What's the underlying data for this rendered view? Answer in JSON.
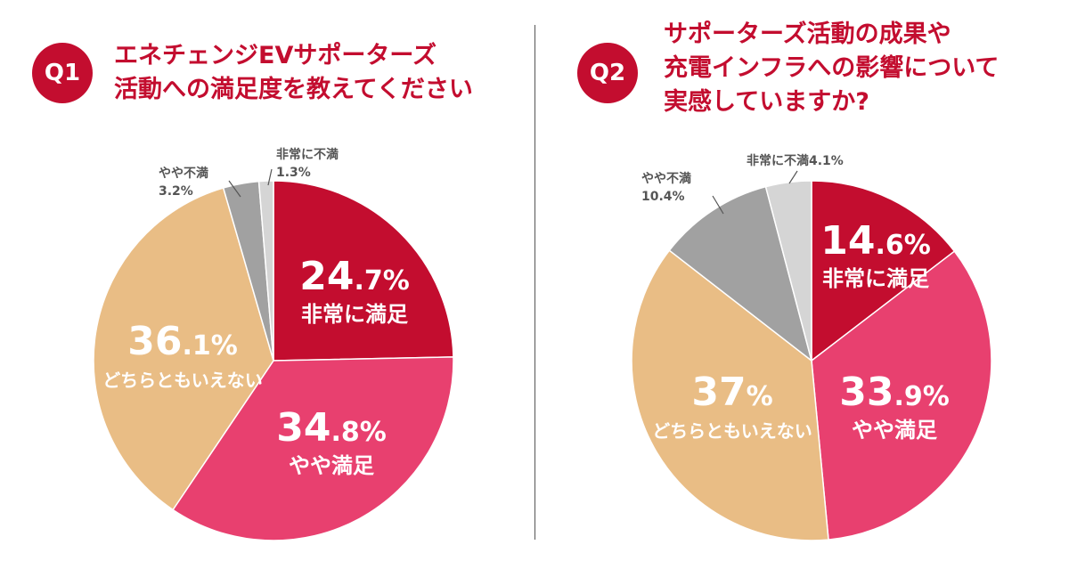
{
  "colors": {
    "brand": "#c30d2f",
    "very_satisfied": "#c30d2f",
    "somewhat_satisfied": "#e8406f",
    "neutral": "#e9bd85",
    "somewhat_dissatisfied": "#a1a1a1",
    "very_dissatisfied": "#d5d5d5"
  },
  "q1": {
    "badge": "Q1",
    "title_lines": [
      "エネチェンジEVサポーターズ",
      "活動への満足度を教えてください"
    ]
  },
  "q2": {
    "badge": "Q2",
    "title_lines": [
      "サポーターズ活動の成果や",
      "充電インフラへの影響について",
      "実感していますか?"
    ]
  },
  "chart_data": [
    {
      "type": "pie",
      "title": "エネチェンジEVサポーターズ活動への満足度を教えてください",
      "start": "12 o'clock, clockwise",
      "slices": [
        {
          "label": "非常に満足",
          "value": 24.7,
          "display_int": "24",
          "display_dec": ".7%",
          "color_key": "very_satisfied",
          "placement": "inside"
        },
        {
          "label": "やや満足",
          "value": 34.8,
          "display_int": "34",
          "display_dec": ".8%",
          "color_key": "somewhat_satisfied",
          "placement": "inside"
        },
        {
          "label": "どちらともいえない",
          "value": 36.1,
          "display_int": "36",
          "display_dec": ".1%",
          "color_key": "neutral",
          "placement": "inside"
        },
        {
          "label": "やや不満",
          "value": 3.2,
          "display": "3.2%",
          "color_key": "somewhat_dissatisfied",
          "placement": "outside-two-line"
        },
        {
          "label": "非常に不満",
          "value": 1.3,
          "display": "1.3%",
          "color_key": "very_dissatisfied",
          "placement": "outside-two-line"
        }
      ]
    },
    {
      "type": "pie",
      "title": "サポーターズ活動の成果や充電インフラへの影響について実感していますか?",
      "start": "12 o'clock, clockwise",
      "slices": [
        {
          "label": "非常に満足",
          "value": 14.6,
          "display_int": "14",
          "display_dec": ".6%",
          "color_key": "very_satisfied",
          "placement": "inside"
        },
        {
          "label": "やや満足",
          "value": 33.9,
          "display_int": "33",
          "display_dec": ".9%",
          "color_key": "somewhat_satisfied",
          "placement": "inside"
        },
        {
          "label": "どちらともいえない",
          "value": 37,
          "display_int": "37",
          "display_dec": "%",
          "color_key": "neutral",
          "placement": "inside"
        },
        {
          "label": "やや不満",
          "value": 10.4,
          "display": "10.4%",
          "color_key": "somewhat_dissatisfied",
          "placement": "outside-two-line"
        },
        {
          "label": "非常に不満",
          "value": 4.1,
          "display": "4.1%",
          "color_key": "very_dissatisfied",
          "placement": "outside-one-line"
        }
      ]
    }
  ]
}
